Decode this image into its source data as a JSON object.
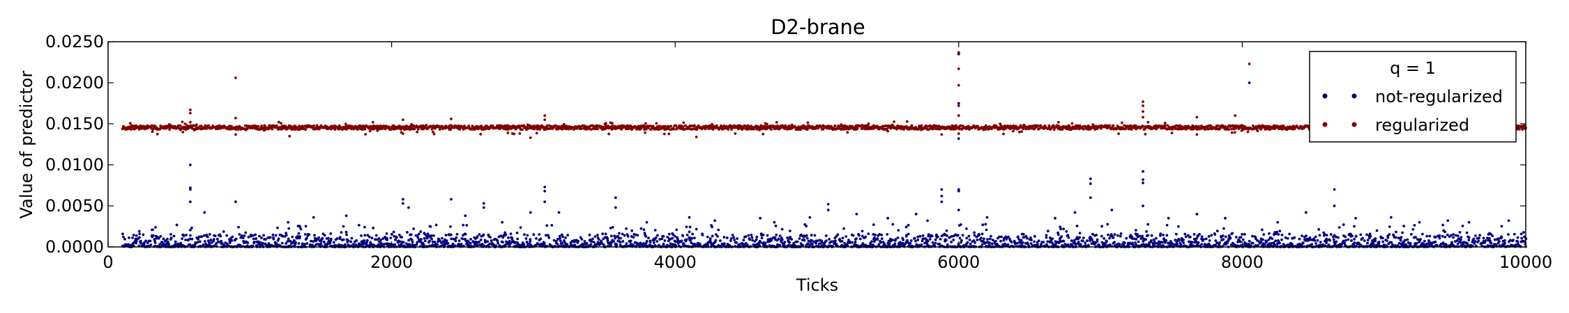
{
  "chart_data": {
    "type": "scatter",
    "title": "D2-brane",
    "xlabel": "Ticks",
    "ylabel": "Value of predictor",
    "xlim": [
      0,
      10000
    ],
    "ylim": [
      0,
      0.025
    ],
    "x_ticks": [
      "0",
      "2000",
      "4000",
      "6000",
      "8000",
      "10000"
    ],
    "y_ticks": [
      "0.0000",
      "0.0050",
      "0.0100",
      "0.0150",
      "0.0200",
      "0.0250"
    ],
    "grid": false,
    "legend": {
      "title": "q = 1",
      "position": "top-right",
      "entries": [
        "not-regularized",
        "regularized"
      ]
    },
    "colors": {
      "not-regularized": "#000080",
      "regularized": "#800000"
    },
    "series": [
      {
        "name": "not-regularized",
        "baseline_description": "dense points near 0.0000–0.0015 across all ticks 100–10000",
        "x_range": [
          100,
          10000
        ],
        "outliers": [
          {
            "x": 580,
            "y": 0.01
          },
          {
            "x": 580,
            "y": 0.0072
          },
          {
            "x": 580,
            "y": 0.007
          },
          {
            "x": 580,
            "y": 0.0055
          },
          {
            "x": 680,
            "y": 0.0042
          },
          {
            "x": 900,
            "y": 0.0055
          },
          {
            "x": 1270,
            "y": 0.003
          },
          {
            "x": 1450,
            "y": 0.0036
          },
          {
            "x": 1680,
            "y": 0.0038
          },
          {
            "x": 2080,
            "y": 0.0058
          },
          {
            "x": 2080,
            "y": 0.0053
          },
          {
            "x": 2120,
            "y": 0.0048
          },
          {
            "x": 2420,
            "y": 0.0058
          },
          {
            "x": 2520,
            "y": 0.0038
          },
          {
            "x": 2650,
            "y": 0.0053
          },
          {
            "x": 2650,
            "y": 0.0048
          },
          {
            "x": 2780,
            "y": 0.003
          },
          {
            "x": 2980,
            "y": 0.0042
          },
          {
            "x": 3080,
            "y": 0.0073
          },
          {
            "x": 3080,
            "y": 0.0068
          },
          {
            "x": 3080,
            "y": 0.0055
          },
          {
            "x": 3180,
            "y": 0.0042
          },
          {
            "x": 3580,
            "y": 0.006
          },
          {
            "x": 3580,
            "y": 0.0048
          },
          {
            "x": 3800,
            "y": 0.003
          },
          {
            "x": 4100,
            "y": 0.0036
          },
          {
            "x": 4280,
            "y": 0.0032
          },
          {
            "x": 4600,
            "y": 0.0035
          },
          {
            "x": 4700,
            "y": 0.003
          },
          {
            "x": 4950,
            "y": 0.0036
          },
          {
            "x": 5080,
            "y": 0.0052
          },
          {
            "x": 5080,
            "y": 0.0045
          },
          {
            "x": 5280,
            "y": 0.004
          },
          {
            "x": 5500,
            "y": 0.0035
          },
          {
            "x": 5700,
            "y": 0.004
          },
          {
            "x": 5780,
            "y": 0.0032
          },
          {
            "x": 5880,
            "y": 0.007
          },
          {
            "x": 5880,
            "y": 0.0062
          },
          {
            "x": 5880,
            "y": 0.0055
          },
          {
            "x": 6000,
            "y": 0.0235
          },
          {
            "x": 6000,
            "y": 0.0175
          },
          {
            "x": 6000,
            "y": 0.0132
          },
          {
            "x": 6000,
            "y": 0.007
          },
          {
            "x": 6000,
            "y": 0.0068
          },
          {
            "x": 6000,
            "y": 0.0045
          },
          {
            "x": 6200,
            "y": 0.0036
          },
          {
            "x": 6680,
            "y": 0.0035
          },
          {
            "x": 6820,
            "y": 0.0042
          },
          {
            "x": 6930,
            "y": 0.0083
          },
          {
            "x": 6930,
            "y": 0.0077
          },
          {
            "x": 6930,
            "y": 0.006
          },
          {
            "x": 7080,
            "y": 0.0045
          },
          {
            "x": 7300,
            "y": 0.0092
          },
          {
            "x": 7300,
            "y": 0.0082
          },
          {
            "x": 7300,
            "y": 0.0078
          },
          {
            "x": 7300,
            "y": 0.005
          },
          {
            "x": 7480,
            "y": 0.0035
          },
          {
            "x": 7680,
            "y": 0.004
          },
          {
            "x": 7880,
            "y": 0.0035
          },
          {
            "x": 8050,
            "y": 0.02
          },
          {
            "x": 8250,
            "y": 0.003
          },
          {
            "x": 8450,
            "y": 0.0042
          },
          {
            "x": 8650,
            "y": 0.007
          },
          {
            "x": 8650,
            "y": 0.005
          },
          {
            "x": 8800,
            "y": 0.0035
          },
          {
            "x": 9050,
            "y": 0.0036
          },
          {
            "x": 9250,
            "y": 0.003
          },
          {
            "x": 9450,
            "y": 0.0032
          },
          {
            "x": 9600,
            "y": 0.003
          },
          {
            "x": 9880,
            "y": 0.0032
          }
        ]
      },
      {
        "name": "regularized",
        "baseline_description": "dense points at about 0.0143–0.0148 across all ticks 100–10000",
        "x_range": [
          100,
          10000
        ],
        "outliers": [
          {
            "x": 580,
            "y": 0.0167
          },
          {
            "x": 580,
            "y": 0.0163
          },
          {
            "x": 580,
            "y": 0.0152
          },
          {
            "x": 900,
            "y": 0.0206
          },
          {
            "x": 900,
            "y": 0.0157
          },
          {
            "x": 900,
            "y": 0.0137
          },
          {
            "x": 1280,
            "y": 0.0135
          },
          {
            "x": 2080,
            "y": 0.0155
          },
          {
            "x": 2080,
            "y": 0.0138
          },
          {
            "x": 2420,
            "y": 0.0156
          },
          {
            "x": 2980,
            "y": 0.0133
          },
          {
            "x": 3080,
            "y": 0.016
          },
          {
            "x": 3080,
            "y": 0.0155
          },
          {
            "x": 4150,
            "y": 0.0134
          },
          {
            "x": 5880,
            "y": 0.0137
          },
          {
            "x": 6000,
            "y": 0.0237
          },
          {
            "x": 6000,
            "y": 0.0217
          },
          {
            "x": 6000,
            "y": 0.0197
          },
          {
            "x": 6000,
            "y": 0.0172
          },
          {
            "x": 6000,
            "y": 0.016
          },
          {
            "x": 6000,
            "y": 0.0138
          },
          {
            "x": 7300,
            "y": 0.0177
          },
          {
            "x": 7300,
            "y": 0.0172
          },
          {
            "x": 7300,
            "y": 0.0165
          },
          {
            "x": 7300,
            "y": 0.0158
          },
          {
            "x": 7680,
            "y": 0.0158
          },
          {
            "x": 7680,
            "y": 0.0137
          },
          {
            "x": 7950,
            "y": 0.016
          },
          {
            "x": 8050,
            "y": 0.0223
          }
        ]
      }
    ]
  }
}
